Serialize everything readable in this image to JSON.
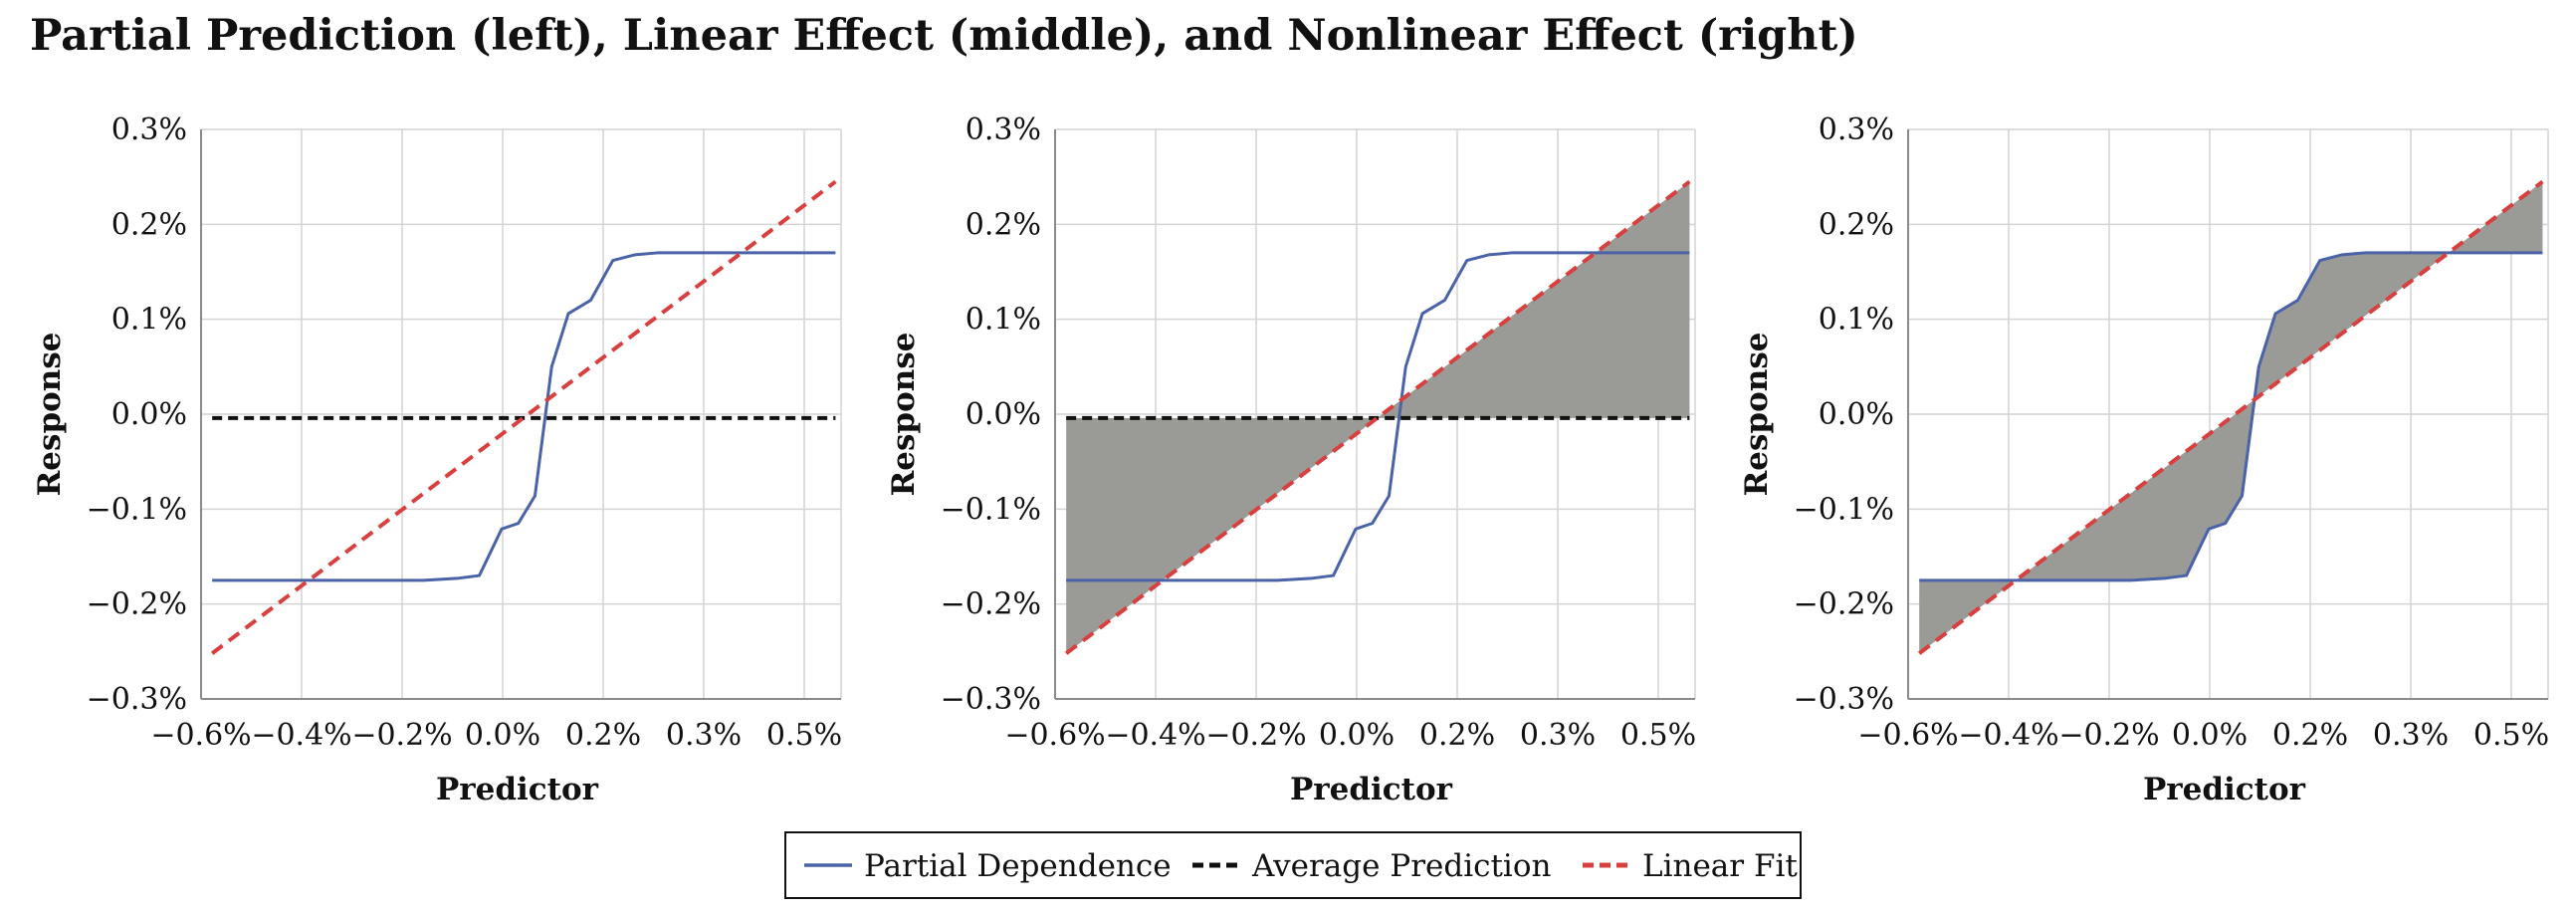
{
  "title": "Partial Prediction (left), Linear Effect (middle), and Nonlinear Effect (right)",
  "legend": {
    "items": [
      {
        "label": "Partial Dependence",
        "color": "#4a63a8",
        "style": "solid"
      },
      {
        "label": "Average Prediction",
        "color": "#111111",
        "style": "dashed"
      },
      {
        "label": "Linear Fit",
        "color": "#d84040",
        "style": "dashed"
      }
    ]
  },
  "chart_data": [
    {
      "type": "line",
      "xlabel": "Predictor",
      "ylabel": "Response",
      "xlim": [
        -0.6,
        0.55
      ],
      "ylim": [
        -0.3,
        0.3
      ],
      "x_ticks": [
        "−0.6%",
        "−0.4%",
        "−0.2%",
        "0.0%",
        "0.2%",
        "0.3%",
        "0.5%"
      ],
      "y_ticks": [
        "0.3%",
        "0.2%",
        "0.1%",
        "0.0%",
        "−0.1%",
        "−0.2%",
        "−0.3%"
      ],
      "grid": true,
      "shading": "none",
      "series": [
        {
          "name": "Partial Dependence",
          "x": [
            -0.58,
            -0.4,
            -0.2,
            -0.14,
            -0.1,
            -0.06,
            -0.03,
            0.0,
            0.03,
            0.06,
            0.1,
            0.14,
            0.18,
            0.22,
            0.3,
            0.4,
            0.54
          ],
          "y": [
            -0.175,
            -0.175,
            -0.175,
            -0.173,
            -0.17,
            -0.121,
            -0.115,
            -0.086,
            0.05,
            0.106,
            0.12,
            0.162,
            0.168,
            0.17,
            0.17,
            0.17,
            0.17
          ]
        },
        {
          "name": "Average Prediction",
          "x": [
            -0.58,
            0.54
          ],
          "y": [
            -0.004,
            -0.004
          ]
        },
        {
          "name": "Linear Fit",
          "x": [
            -0.58,
            0.54
          ],
          "y": [
            -0.252,
            0.245
          ]
        }
      ]
    },
    {
      "type": "line",
      "xlabel": "Predictor",
      "ylabel": "Response",
      "xlim": [
        -0.6,
        0.55
      ],
      "ylim": [
        -0.3,
        0.3
      ],
      "x_ticks": [
        "−0.6%",
        "−0.4%",
        "−0.2%",
        "0.0%",
        "0.2%",
        "0.3%",
        "0.5%"
      ],
      "y_ticks": [
        "0.3%",
        "0.2%",
        "0.1%",
        "0.0%",
        "−0.1%",
        "−0.2%",
        "−0.3%"
      ],
      "grid": true,
      "shading": "between Linear Fit and Average Prediction",
      "series": [
        {
          "name": "Partial Dependence",
          "x": [
            -0.58,
            -0.4,
            -0.2,
            -0.14,
            -0.1,
            -0.06,
            -0.03,
            0.0,
            0.03,
            0.06,
            0.1,
            0.14,
            0.18,
            0.22,
            0.3,
            0.4,
            0.54
          ],
          "y": [
            -0.175,
            -0.175,
            -0.175,
            -0.173,
            -0.17,
            -0.121,
            -0.115,
            -0.086,
            0.05,
            0.106,
            0.12,
            0.162,
            0.168,
            0.17,
            0.17,
            0.17,
            0.17
          ]
        },
        {
          "name": "Average Prediction",
          "x": [
            -0.58,
            0.54
          ],
          "y": [
            -0.004,
            -0.004
          ]
        },
        {
          "name": "Linear Fit",
          "x": [
            -0.58,
            0.54
          ],
          "y": [
            -0.252,
            0.245
          ]
        }
      ]
    },
    {
      "type": "line",
      "xlabel": "Predictor",
      "ylabel": "Response",
      "xlim": [
        -0.6,
        0.55
      ],
      "ylim": [
        -0.3,
        0.3
      ],
      "x_ticks": [
        "−0.6%",
        "−0.4%",
        "−0.2%",
        "0.0%",
        "0.2%",
        "0.3%",
        "0.5%"
      ],
      "y_ticks": [
        "0.3%",
        "0.2%",
        "0.1%",
        "0.0%",
        "−0.1%",
        "−0.2%",
        "−0.3%"
      ],
      "grid": true,
      "shading": "between Partial Dependence and Linear Fit",
      "series": [
        {
          "name": "Partial Dependence",
          "x": [
            -0.58,
            -0.4,
            -0.2,
            -0.14,
            -0.1,
            -0.06,
            -0.03,
            0.0,
            0.03,
            0.06,
            0.1,
            0.14,
            0.18,
            0.22,
            0.3,
            0.4,
            0.54
          ],
          "y": [
            -0.175,
            -0.175,
            -0.175,
            -0.173,
            -0.17,
            -0.121,
            -0.115,
            -0.086,
            0.05,
            0.106,
            0.12,
            0.162,
            0.168,
            0.17,
            0.17,
            0.17,
            0.17
          ]
        },
        {
          "name": "Linear Fit",
          "x": [
            -0.58,
            0.54
          ],
          "y": [
            -0.252,
            0.245
          ]
        }
      ]
    }
  ],
  "colors": {
    "shade": "#9a9a96",
    "grid": "#d4d4d4",
    "axis": "#8a8a8a"
  }
}
